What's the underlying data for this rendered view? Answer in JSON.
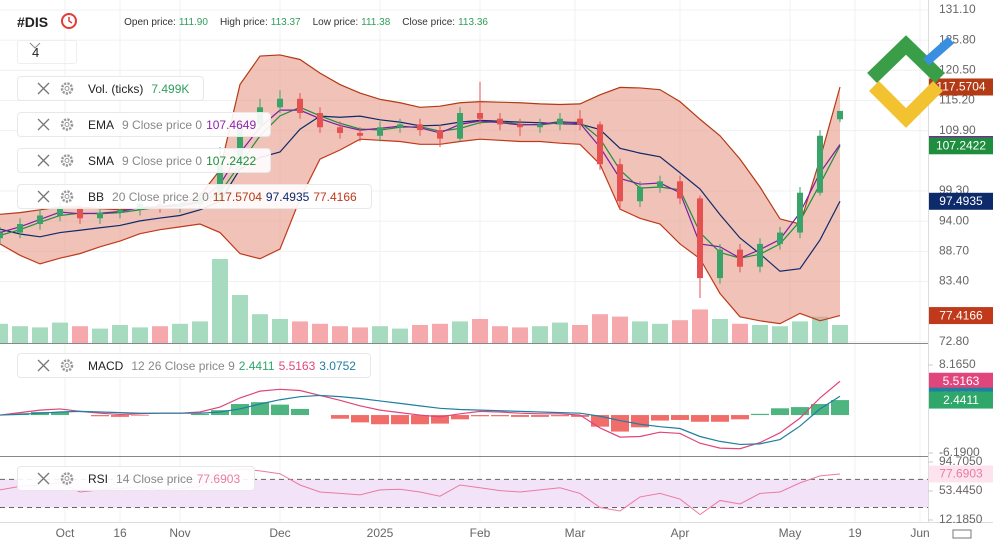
{
  "header": {
    "symbol": "#DIS",
    "interval": "4",
    "fields": [
      {
        "label": "Open price:",
        "value": "111.90"
      },
      {
        "label": "High price:",
        "value": "113.37"
      },
      {
        "label": "Low price:",
        "value": "111.38"
      },
      {
        "label": "Close price:",
        "value": "113.36"
      }
    ]
  },
  "chart_data": [
    {
      "type": "candlestick",
      "xlim": [
        0,
        185.2
      ],
      "xticks": [
        {
          "value": 13,
          "label": "Oct"
        },
        {
          "value": 24,
          "label": "16"
        },
        {
          "value": 36,
          "label": "Nov"
        },
        {
          "value": 56,
          "label": "Dec"
        },
        {
          "value": 76,
          "label": "2025"
        },
        {
          "value": 96,
          "label": "Feb"
        },
        {
          "value": 115,
          "label": "Mar"
        },
        {
          "value": 136,
          "label": "Apr"
        },
        {
          "value": 158,
          "label": "May"
        },
        {
          "value": 171,
          "label": "19"
        },
        {
          "value": 184,
          "label": "Jun"
        }
      ],
      "ylim": [
        72.6,
        132.85
      ],
      "yticks": [
        {
          "value": 131.1,
          "label": "131.10"
        },
        {
          "value": 125.8,
          "label": "125.80"
        },
        {
          "value": 120.5,
          "label": "120.50"
        },
        {
          "value": 115.2,
          "label": "115.20"
        },
        {
          "value": 109.9,
          "label": "109.90"
        },
        {
          "value": 99.3,
          "label": "99.30"
        },
        {
          "value": 94.0,
          "label": "94.00"
        },
        {
          "value": 88.7,
          "label": "88.70"
        },
        {
          "value": 83.4,
          "label": "83.40"
        },
        {
          "value": 72.8,
          "label": "72.80"
        }
      ],
      "grid": true,
      "up_color": "#3aa36a",
      "down_color": "#e55050",
      "x": [
        0,
        4,
        8,
        12,
        16,
        20,
        24,
        28,
        32,
        36,
        40,
        44,
        48,
        52,
        56,
        60,
        64,
        68,
        72,
        76,
        80,
        84,
        88,
        92,
        96,
        100,
        104,
        108,
        112,
        116,
        120,
        124,
        128,
        132,
        136,
        140,
        144,
        148,
        152,
        156,
        160,
        164,
        168
      ],
      "open": [
        91.0,
        92.0,
        93.5,
        95.0,
        96.5,
        94.5,
        95.5,
        96.0,
        97.0,
        96.5,
        97.0,
        98.0,
        104.0,
        111.0,
        114.0,
        115.5,
        113.0,
        110.5,
        109.5,
        109.0,
        110.5,
        111.0,
        110.0,
        108.5,
        113.0,
        112.0,
        111.0,
        110.5,
        111.0,
        112.0,
        111.0,
        104.0,
        97.5,
        100.0,
        101.0,
        98.0,
        84.0,
        89.0,
        86.0,
        90.0,
        92.0,
        99.0,
        111.9
      ],
      "high": [
        93,
        94.5,
        96,
        97.5,
        97,
        96.5,
        97,
        98,
        98,
        98,
        99,
        107,
        112,
        115.5,
        117,
        116.5,
        114,
        111.5,
        110.5,
        111.5,
        112,
        112,
        111,
        114,
        118.5,
        113,
        112,
        112,
        113,
        113.5,
        111.5,
        105,
        101,
        102,
        102,
        98.5,
        90,
        90,
        91,
        93,
        100,
        110,
        113.37
      ],
      "low": [
        90,
        91,
        92.5,
        94,
        93.5,
        93.5,
        94.5,
        95,
        95.5,
        95.5,
        96,
        97,
        103,
        110,
        113,
        112,
        109.5,
        108.5,
        108,
        108,
        109.5,
        109,
        107,
        108,
        111,
        110,
        109,
        109.5,
        110,
        110,
        103,
        96,
        96.5,
        99,
        97,
        80.5,
        83,
        85,
        85,
        89,
        91,
        98.5,
        111.38
      ],
      "close": [
        92,
        93.5,
        95,
        96.5,
        94.5,
        95.5,
        96,
        97,
        96.5,
        97,
        98,
        104,
        111,
        114,
        115.5,
        113,
        110.5,
        109.5,
        109,
        110.5,
        111,
        110,
        108.5,
        113,
        112,
        111,
        110.5,
        111,
        112,
        111,
        104,
        97.5,
        100,
        101,
        98,
        84,
        89,
        86,
        90,
        92,
        99,
        109,
        113.36
      ],
      "volume": {
        "name": "Vol. (ticks)",
        "vlim": [
          0,
          50000
        ],
        "up_color": "#a6dbbf",
        "down_color": "#f5a9ad",
        "values": [
          8000,
          7000,
          6500,
          8500,
          7000,
          6000,
          7500,
          6500,
          7000,
          8000,
          9000,
          35000,
          20000,
          12000,
          10000,
          9000,
          8000,
          7000,
          6500,
          7000,
          6000,
          7500,
          8000,
          9000,
          10000,
          7000,
          6500,
          7000,
          8500,
          7500,
          12000,
          11000,
          9000,
          8000,
          9500,
          14000,
          10000,
          8000,
          7500,
          7000,
          9000,
          11000,
          7499
        ],
        "value_labels": [
          null,
          null,
          null,
          null,
          null,
          null,
          null,
          null,
          null,
          null,
          null,
          null,
          null,
          null,
          null,
          null,
          null,
          null,
          null,
          null,
          null,
          null,
          null,
          null,
          null,
          null,
          null,
          null,
          null,
          null,
          null,
          null,
          null,
          null,
          null,
          null,
          null,
          null,
          null,
          null,
          null,
          null,
          "7.499K"
        ]
      },
      "ema": {
        "name": "EMA",
        "params": "9 Close price 0",
        "color": "#7b1fa2",
        "values": [
          92.0,
          93.0,
          94.3,
          95.6,
          95.3,
          95.4,
          95.7,
          96.4,
          96.5,
          96.8,
          97.5,
          100.5,
          106,
          110.5,
          113.5,
          113.5,
          112,
          110.8,
          110,
          110.3,
          110.7,
          110.4,
          109.5,
          111,
          111.6,
          111.3,
          110.9,
          111,
          111.5,
          111.2,
          107,
          101.5,
          100.5,
          100.7,
          99,
          90,
          89.5,
          87.5,
          89,
          90.8,
          95.5,
          102.5,
          107.4649
        ]
      },
      "sma": {
        "name": "SMA",
        "params": "9 Close price 0",
        "color": "#1e8e3e",
        "values": [
          91.5,
          92.5,
          93.8,
          95.0,
          95.4,
          95.3,
          95.5,
          96.0,
          96.5,
          96.7,
          97.2,
          99.0,
          104,
          109,
          112.5,
          114,
          112.5,
          111.2,
          110.2,
          110,
          110.5,
          110.6,
          109.8,
          110.3,
          111.3,
          111.5,
          111.0,
          110.9,
          111.3,
          111.4,
          108.5,
          103,
          99.8,
          100,
          99.5,
          92,
          88.5,
          87.5,
          88.2,
          90,
          94,
          100.5,
          107.2422
        ]
      },
      "bb": {
        "name": "BB",
        "params": "20 Close price 2 0",
        "upper_color": "#b23a14",
        "middle_color": "#0d2a6b",
        "lower_color": "#c0391b",
        "fill": "#e89a88",
        "upper": [
          95.2,
          95.5,
          96.0,
          96.5,
          96.5,
          96.2,
          96.0,
          96.3,
          96.6,
          97.0,
          98.5,
          103,
          118,
          123,
          123.2,
          122.4,
          120,
          118,
          116.5,
          115.4,
          114.8,
          114.0,
          114.2,
          114.8,
          115.0,
          114.9,
          114.8,
          114.6,
          114.5,
          114.6,
          116.2,
          117.5,
          117.4,
          117.1,
          115,
          111.9,
          109,
          104.9,
          100,
          94.4,
          93.5,
          104.9,
          117.5704
        ],
        "middle": [
          92.6,
          91.75,
          91.25,
          92,
          92.4,
          92.85,
          93.25,
          94.05,
          94.55,
          95,
          96,
          97.5,
          103.15,
          105.2,
          106.15,
          110.15,
          112.45,
          112.25,
          112.45,
          111.8,
          111.4,
          110.75,
          110.85,
          111.4,
          111.7,
          111.55,
          111.4,
          111.3,
          111.1,
          111.05,
          110.1,
          106.8,
          105.95,
          105.3,
          102.5,
          99.65,
          95.15,
          91.05,
          88.25,
          85.2,
          85.65,
          90.7,
          97.4935
        ],
        "lower": [
          90,
          88,
          86.5,
          87.5,
          88.3,
          89.5,
          90.5,
          91.8,
          92.5,
          93,
          93.5,
          92,
          88.3,
          87.4,
          89.1,
          97.9,
          104.9,
          106.5,
          108.4,
          108.2,
          108,
          107.5,
          107.5,
          108,
          108.4,
          108.2,
          108,
          108,
          107.7,
          107.5,
          104,
          96.1,
          94.5,
          93.5,
          90,
          87.4,
          81.3,
          77.2,
          76.5,
          76,
          77.8,
          76.5,
          77.4166
        ]
      }
    },
    {
      "type": "macd",
      "name": "MACD",
      "params": "12 26 Close price 9",
      "ylim": [
        -6.52,
        11.43
      ],
      "yticks": [
        {
          "value": 8.165,
          "label": "8.1650"
        },
        {
          "value": -6.19,
          "label": "-6.1900"
        }
      ],
      "histogram": {
        "pos_color": "#2fa76a",
        "neg_color": "#ef5350",
        "values": [
          0,
          0.3,
          0.5,
          0.5,
          0,
          -0.2,
          -0.3,
          -0.1,
          0,
          0,
          0.2,
          0.8,
          1.8,
          2.1,
          1.7,
          1.0,
          0,
          -0.6,
          -1.2,
          -1.5,
          -1.5,
          -1.5,
          -1.4,
          -0.7,
          -0.2,
          -0.2,
          -0.3,
          -0.3,
          -0.2,
          -0.3,
          -1.9,
          -2.7,
          -2.0,
          -0.9,
          -0.8,
          -1.1,
          -1.1,
          -0.7,
          0.2,
          1.1,
          1.3,
          1.8,
          2.4411
        ]
      },
      "macd": {
        "color": "#e0457b",
        "values": [
          0,
          0.4,
          0.8,
          1.0,
          0.6,
          0.3,
          0.1,
          0.2,
          0.3,
          0.3,
          0.5,
          1.3,
          2.8,
          3.9,
          4.2,
          4.0,
          3.2,
          2.4,
          1.5,
          0.8,
          0.4,
          0,
          -0.3,
          0.2,
          0.6,
          0.5,
          0.3,
          0.2,
          0.2,
          0,
          -2.1,
          -3.6,
          -3.5,
          -2.8,
          -3.0,
          -4.6,
          -5.4,
          -5.5,
          -4.5,
          -2.9,
          -0.5,
          2.8,
          5.5163
        ]
      },
      "signal": {
        "color": "#1f7fa0",
        "values": [
          0,
          0.1,
          0.3,
          0.5,
          0.6,
          0.5,
          0.4,
          0.3,
          0.3,
          0.3,
          0.3,
          0.5,
          1.0,
          1.8,
          2.5,
          3.0,
          3.2,
          3.0,
          2.7,
          2.3,
          1.9,
          1.5,
          1.1,
          0.9,
          0.8,
          0.7,
          0.6,
          0.5,
          0.4,
          0.3,
          -0.2,
          -0.9,
          -1.5,
          -1.9,
          -2.2,
          -3.5,
          -4.3,
          -4.8,
          -4.7,
          -4.0,
          -1.8,
          1.0,
          3.0752
        ]
      }
    },
    {
      "type": "line",
      "name": "RSI",
      "params": "14 Close price",
      "color": "#ec7aa0",
      "band_color": "#f3e3f8",
      "ylim": [
        9.34,
        101.82
      ],
      "yticks": [
        {
          "value": 94.705,
          "label": "94.7050"
        },
        {
          "value": 53.445,
          "label": "53.4450"
        },
        {
          "value": 12.185,
          "label": "12.1850"
        }
      ],
      "levels": [
        70,
        30
      ],
      "values": [
        55,
        60,
        62,
        65,
        52,
        55,
        57,
        60,
        55,
        57,
        60,
        80,
        85,
        82,
        78,
        62,
        52,
        50,
        48,
        55,
        56,
        52,
        46,
        62,
        58,
        54,
        52,
        55,
        58,
        50,
        30,
        25,
        45,
        50,
        42,
        20,
        40,
        35,
        50,
        52,
        65,
        75,
        77.6903
      ]
    }
  ]
}
